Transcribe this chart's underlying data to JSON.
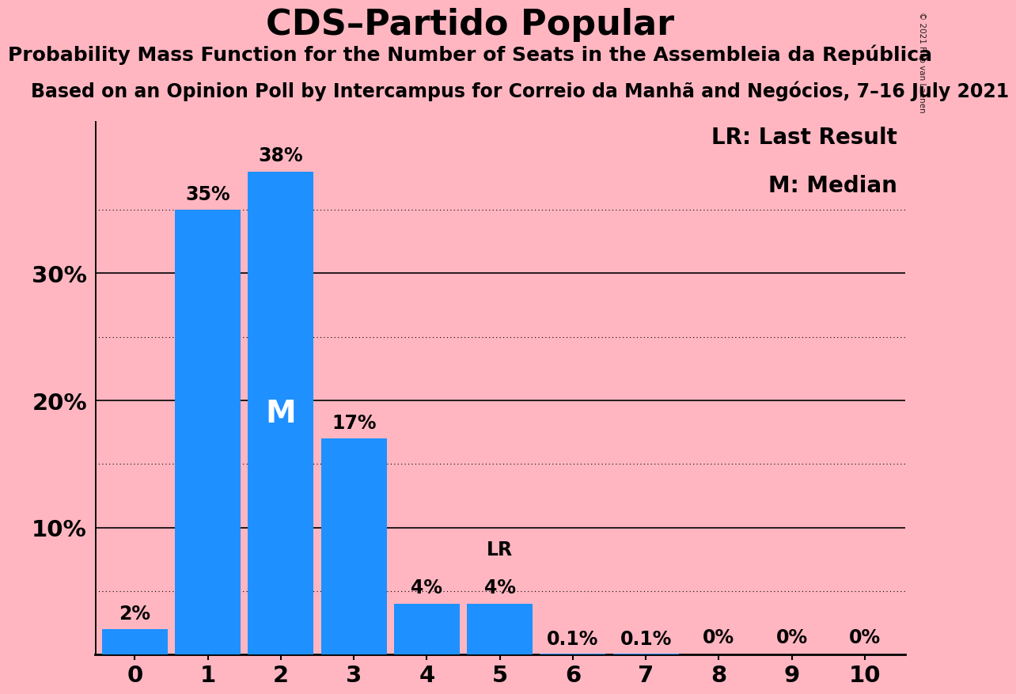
{
  "title": "CDS–Partido Popular",
  "subtitle1": "Probability Mass Function for the Number of Seats in the Assembleia da República",
  "subtitle2": "Based on an Opinion Poll by Intercampus for Correio da Manhã and Negócios, 7–16 July 2021",
  "watermark": "© 2021 Filip van Laenen",
  "categories": [
    0,
    1,
    2,
    3,
    4,
    5,
    6,
    7,
    8,
    9,
    10
  ],
  "values": [
    2.0,
    35.0,
    38.0,
    17.0,
    4.0,
    4.0,
    0.1,
    0.1,
    0.0,
    0.0,
    0.0
  ],
  "labels": [
    "2%",
    "35%",
    "38%",
    "17%",
    "4%",
    "4%",
    "0.1%",
    "0.1%",
    "0%",
    "0%",
    "0%"
  ],
  "bar_color": "#1E90FF",
  "background_color": "#FFB6C1",
  "text_color": "#000000",
  "median_bar": 2,
  "median_label": "M",
  "last_result_bar": 5,
  "last_result_label": "LR",
  "legend_lr": "LR: Last Result",
  "legend_m": "M: Median",
  "ylim": [
    0,
    42
  ],
  "solid_yticks": [
    10,
    20,
    30
  ],
  "dotted_yticks": [
    5,
    15,
    25,
    35
  ],
  "title_fontsize": 32,
  "subtitle1_fontsize": 18,
  "subtitle2_fontsize": 17,
  "label_fontsize": 17,
  "tick_fontsize": 21,
  "legend_fontsize": 20,
  "median_fontsize": 28
}
